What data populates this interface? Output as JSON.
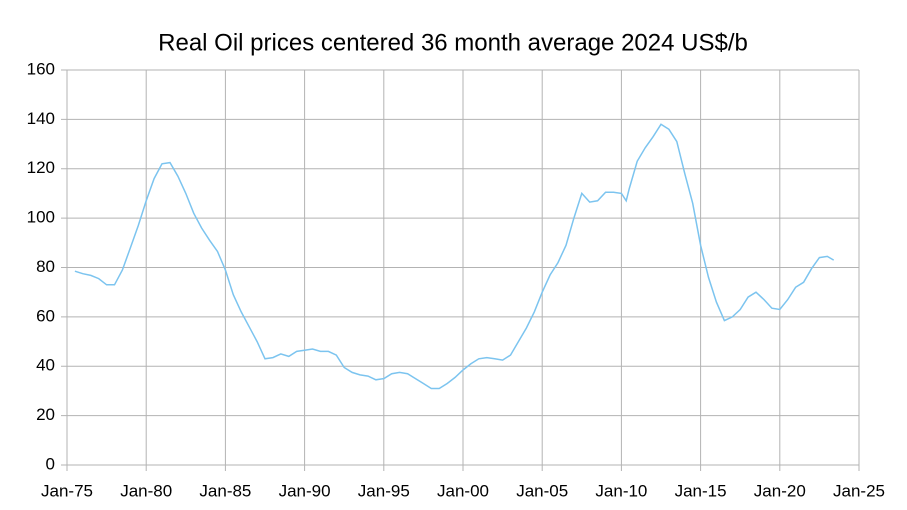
{
  "chart_data": {
    "type": "line",
    "title": "Real Oil prices centered 36 month average  2024 US$/b",
    "x": [
      1975.5,
      1976,
      1976.5,
      1977,
      1977.5,
      1978,
      1978.5,
      1979,
      1979.5,
      1980,
      1980.5,
      1981,
      1981.5,
      1982,
      1982.5,
      1983,
      1983.5,
      1984,
      1984.5,
      1985,
      1985.5,
      1986,
      1986.5,
      1987,
      1987.5,
      1988,
      1988.5,
      1989,
      1989.5,
      1990,
      1990.5,
      1991,
      1991.5,
      1992,
      1992.5,
      1993,
      1993.5,
      1994,
      1994.5,
      1995,
      1995.5,
      1996,
      1996.5,
      1997,
      1997.5,
      1998,
      1998.5,
      1999,
      1999.5,
      2000,
      2000.5,
      2001,
      2001.5,
      2002,
      2002.5,
      2003,
      2003.5,
      2004,
      2004.5,
      2005,
      2005.5,
      2006,
      2006.5,
      2007,
      2007.5,
      2008,
      2008.5,
      2009,
      2009.5,
      2010,
      2010.3,
      2010.5,
      2011,
      2011.5,
      2012,
      2012.5,
      2013,
      2013.5,
      2014,
      2014.5,
      2015,
      2015.5,
      2016,
      2016.5,
      2017,
      2017.5,
      2018,
      2018.5,
      2019,
      2019.5,
      2020,
      2020.5,
      2021,
      2021.5,
      2022,
      2022.5,
      2023,
      2023.4
    ],
    "series": [
      {
        "color": "#7cc4ef",
        "values": [
          78.5,
          77.5,
          76.8,
          75.5,
          73,
          73,
          79,
          88,
          97,
          107,
          116,
          122,
          122.5,
          117,
          110,
          102,
          96,
          91,
          86.5,
          79,
          69,
          62,
          56,
          50,
          43,
          43.5,
          45,
          44,
          46,
          46.5,
          47,
          46,
          46,
          44.5,
          39.5,
          37.5,
          36.5,
          36,
          34.5,
          35,
          37,
          37.5,
          37,
          35,
          33,
          31,
          31,
          33,
          35.5,
          38.5,
          41,
          43,
          43.5,
          43,
          42.5,
          44.5,
          50,
          55.5,
          62,
          70,
          77,
          82,
          89,
          100,
          110,
          106.5,
          107,
          110.5,
          110.5,
          110,
          107,
          112,
          123,
          128.5,
          133,
          138,
          136,
          131,
          118,
          106,
          89,
          76,
          66,
          58.5,
          60,
          63,
          68,
          70,
          67,
          63.5,
          63,
          67,
          72,
          74,
          79.5,
          84,
          84.5,
          83
        ]
      }
    ],
    "xlim": [
      1975,
      2025
    ],
    "xticks": [
      {
        "value": 1975,
        "label": "Jan-75"
      },
      {
        "value": 1980,
        "label": "Jan-80"
      },
      {
        "value": 1985,
        "label": "Jan-85"
      },
      {
        "value": 1990,
        "label": "Jan-90"
      },
      {
        "value": 1995,
        "label": "Jan-95"
      },
      {
        "value": 2000,
        "label": "Jan-00"
      },
      {
        "value": 2005,
        "label": "Jan-05"
      },
      {
        "value": 2010,
        "label": "Jan-10"
      },
      {
        "value": 2015,
        "label": "Jan-15"
      },
      {
        "value": 2020,
        "label": "Jan-20"
      },
      {
        "value": 2025,
        "label": "Jan-25"
      }
    ],
    "ylim": [
      0,
      160
    ],
    "yticks": [
      0,
      20,
      40,
      60,
      80,
      100,
      120,
      140,
      160
    ],
    "grid": true
  }
}
